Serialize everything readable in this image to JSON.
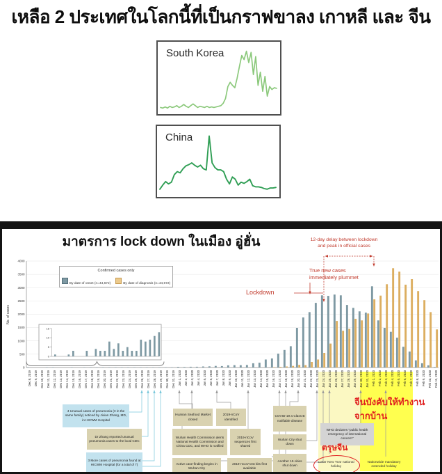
{
  "page_title": "เหลือ 2 ประเทศในโลกนี้ที่เป็นกราฟขาลง เกาหลี และ จีน",
  "lockdown_panel": {
    "title": "มาตรการ lock down ในเมือง อู่ฮั่น",
    "legend": {
      "title": "Confirmed cases only"
    },
    "annotations": {
      "delay_line1": "12-day delay between lockdown",
      "delay_line2": "and peak in official cases",
      "plummet_line1": "True new cases",
      "plummet_line2": "immediately plummet",
      "lockdown": "Lockdown",
      "work_from_home_line1": "จีนบังคับให้ทำงาน",
      "work_from_home_line2": "จากบ้าน",
      "chinese_new_year": "ตรุษจีน"
    },
    "callouts": [
      {
        "text": "4 Unusual cases of pneumonia (3 in the same family) noticed by Jixian Zhang, MD, in HICWM Hospital",
        "style": "blue"
      },
      {
        "text": "Dr Zhang reported unusual pneumonia cases to the local CDC",
        "style": "tan"
      },
      {
        "text": "3 More cases of pneumonia found at HICWM Hospital (for a total of 7)",
        "style": "blue"
      },
      {
        "text": "Huanan Seafood Market closed",
        "style": "tan"
      },
      {
        "text": "2019-nCoV identified",
        "style": "tan"
      },
      {
        "text": "Wuhan Health Commission alerts National Health Commission and China CDC, and WHO is notified",
        "style": "tan"
      },
      {
        "text": "2019-nCoV sequences first shared",
        "style": "tan"
      },
      {
        "text": "Active case-finding begins in Wuhan City",
        "style": "tan"
      },
      {
        "text": "2019-nCoV test kits first available",
        "style": "tan"
      },
      {
        "text": "COVID-19 a Class B notifiable disease",
        "style": "tan"
      },
      {
        "text": "Wuhan City shut down",
        "style": "tan"
      },
      {
        "text": "Another 15 cities shut down",
        "style": "tan"
      },
      {
        "text": "WHO declares \"public health emergency of international concern\"",
        "style": "gray"
      },
      {
        "text": "Lunar New Year national holiday",
        "style": "plain"
      },
      {
        "text": "Nationwide mandatory extended holiday",
        "style": "plain"
      }
    ]
  },
  "colors": {
    "onset_bar": "#7e99a3",
    "diagnosis_bar": "#dcae60",
    "sk_line": "#8cc97c",
    "china_line": "#2f9e54",
    "annotation_red": "#c0392b",
    "thai_red": "#e01f1f",
    "highlight_pale": "#fbf8c2",
    "highlight_bright": "#ffff4f",
    "leader_teal": "#79c7db",
    "leader_gray": "#9a9a9a"
  },
  "chart_data": [
    {
      "type": "line",
      "title": "South Korea",
      "ylim": [
        0,
        100
      ],
      "grid": false,
      "values": [
        3,
        2,
        4,
        2,
        5,
        3,
        4,
        6,
        3,
        5,
        8,
        5,
        3,
        6,
        9,
        6,
        3,
        5,
        4,
        3,
        5,
        3,
        4,
        3,
        4,
        5,
        6,
        10,
        18,
        38,
        45,
        40,
        36,
        52,
        72,
        90,
        83,
        97,
        78,
        95,
        58,
        88,
        40,
        62,
        30,
        55,
        22,
        38,
        33,
        36,
        35
      ]
    },
    {
      "type": "line",
      "title": "China",
      "ylim": [
        0,
        100
      ],
      "grid": false,
      "values": [
        5,
        12,
        18,
        14,
        17,
        30,
        35,
        33,
        40,
        45,
        47,
        50,
        46,
        43,
        46,
        40,
        38,
        96,
        50,
        42,
        38,
        38,
        35,
        22,
        14,
        26,
        22,
        12,
        17,
        15,
        18,
        22,
        11,
        9,
        9,
        8,
        6,
        5,
        7,
        7,
        8
      ]
    },
    {
      "type": "bar",
      "title": "มาตรการ lock down ในเมือง อู่ฮั่น",
      "ylabel": "No. of cases",
      "ylim": [
        0,
        4000
      ],
      "yticks": [
        0,
        500,
        1000,
        1500,
        2000,
        2500,
        3000,
        3500,
        4000
      ],
      "grid": true,
      "legend_position": "top-left",
      "categories": [
        "Dec 8, 2019",
        "Dec 9, 2019",
        "Dec 10, 2019",
        "Dec 11, 2019",
        "Dec 12, 2019",
        "Dec 13, 2019",
        "Dec 14, 2019",
        "Dec 15, 2019",
        "Dec 16, 2019",
        "Dec 17, 2019",
        "Dec 18, 2019",
        "Dec 19, 2019",
        "Dec 20, 2019",
        "Dec 21, 2019",
        "Dec 22, 2019",
        "Dec 23, 2019",
        "Dec 24, 2019",
        "Dec 25, 2019",
        "Dec 26, 2019",
        "Dec 27, 2019",
        "Dec 28, 2019",
        "Dec 29, 2019",
        "Dec 30, 2019",
        "Dec 31, 2019",
        "Jan 1, 2020",
        "Jan 2, 2020",
        "Jan 3, 2020",
        "Jan 4, 2020",
        "Jan 5, 2020",
        "Jan 6, 2020",
        "Jan 7, 2020",
        "Jan 8, 2020",
        "Jan 9, 2020",
        "Jan 10, 2020",
        "Jan 11, 2020",
        "Jan 12, 2020",
        "Jan 13, 2020",
        "Jan 14, 2020",
        "Jan 15, 2020",
        "Jan 16, 2020",
        "Jan 17, 2020",
        "Jan 18, 2020",
        "Jan 19, 2020",
        "Jan 20, 2020",
        "Jan 21, 2020",
        "Jan 22, 2020",
        "Jan 23, 2020",
        "Jan 24, 2020",
        "Jan 25, 2020",
        "Jan 26, 2020",
        "Jan 27, 2020",
        "Jan 28, 2020",
        "Jan 29, 2020",
        "Jan 30, 2020",
        "Jan 31, 2020",
        "Feb 1, 2020",
        "Feb 2, 2020",
        "Feb 3, 2020",
        "Feb 4, 2020",
        "Feb 5, 2020",
        "Feb 6, 2020",
        "Feb 7, 2020",
        "Feb 8, 2020",
        "Feb 9, 2020",
        "Feb 10, 2020",
        "Feb 11, 2020"
      ],
      "series": [
        {
          "name": "By date of onset (n=44,672)",
          "values": [
            1,
            0,
            0,
            1,
            3,
            0,
            0,
            3,
            0,
            4,
            3,
            3,
            8,
            4,
            7,
            3,
            5,
            3,
            3,
            9,
            8,
            9,
            11,
            13,
            25,
            20,
            30,
            28,
            38,
            45,
            60,
            55,
            80,
            90,
            85,
            95,
            160,
            180,
            300,
            340,
            520,
            660,
            800,
            1490,
            1880,
            2080,
            2430,
            2710,
            2690,
            2740,
            2710,
            2350,
            2240,
            2110,
            2060,
            3050,
            1770,
            1490,
            1340,
            1120,
            780,
            600,
            270,
            160,
            80,
            20
          ]
        },
        {
          "name": "By date of diagnosis (n=44,672)",
          "values": [
            0,
            0,
            0,
            0,
            0,
            0,
            0,
            0,
            0,
            0,
            0,
            0,
            0,
            0,
            0,
            0,
            0,
            0,
            0,
            0,
            0,
            0,
            0,
            0,
            0,
            0,
            0,
            0,
            0,
            0,
            0,
            0,
            0,
            0,
            0,
            0,
            0,
            0,
            0,
            15,
            25,
            40,
            60,
            100,
            90,
            210,
            300,
            550,
            900,
            1750,
            1380,
            1450,
            1830,
            1770,
            2030,
            2560,
            2700,
            3130,
            3730,
            3600,
            3110,
            3320,
            2870,
            2530,
            2080,
            1430
          ]
        }
      ],
      "inset": {
        "description": "zoomed view of Dec 8 - Dec 31 onset cases",
        "ylim": [
          0,
          15
        ],
        "yticks": [
          0,
          5,
          10,
          15
        ],
        "span_days": 24
      }
    }
  ]
}
